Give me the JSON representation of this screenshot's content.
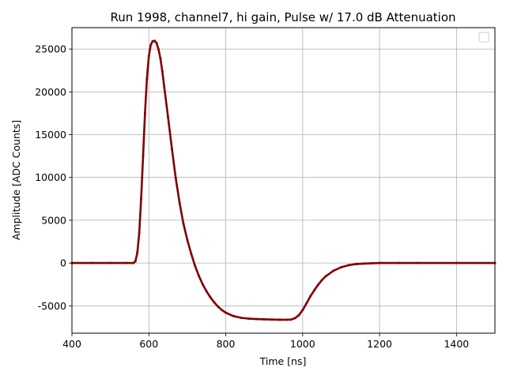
{
  "chart_data": {
    "type": "scatter",
    "title": "Run 1998, channel7, hi gain, Pulse w/ 17.0 dB Attenuation",
    "xlabel": "Time [ns]",
    "ylabel": "Amplitude [ADC Counts]",
    "xlim": [
      400,
      1500
    ],
    "ylim": [
      -8200,
      27500
    ],
    "xticks": [
      400,
      600,
      800,
      1000,
      1200,
      1400
    ],
    "yticks": [
      -5000,
      0,
      5000,
      10000,
      15000,
      20000,
      25000
    ],
    "grid": true,
    "legend": "top-right, empty",
    "series": [
      {
        "color": "#800000",
        "x": [
          400,
          450,
          500,
          540,
          560,
          565,
          570,
          575,
          580,
          585,
          590,
          595,
          600,
          605,
          610,
          615,
          620,
          625,
          630,
          635,
          640,
          650,
          660,
          670,
          680,
          690,
          700,
          710,
          720,
          730,
          740,
          750,
          760,
          770,
          780,
          790,
          800,
          820,
          840,
          860,
          880,
          900,
          920,
          940,
          960,
          970,
          980,
          990,
          1000,
          1010,
          1020,
          1030,
          1040,
          1050,
          1060,
          1080,
          1100,
          1120,
          1140,
          1160,
          1180,
          1200,
          1250,
          1300,
          1400,
          1500
        ],
        "y": [
          0,
          0,
          0,
          0,
          0,
          200,
          1200,
          3500,
          7500,
          12500,
          17500,
          21500,
          24200,
          25500,
          25900,
          25950,
          25700,
          25000,
          23900,
          22400,
          20600,
          17000,
          13300,
          9900,
          7000,
          4600,
          2700,
          1100,
          -300,
          -1500,
          -2500,
          -3300,
          -4000,
          -4600,
          -5100,
          -5500,
          -5800,
          -6200,
          -6400,
          -6500,
          -6550,
          -6580,
          -6600,
          -6620,
          -6620,
          -6600,
          -6450,
          -6100,
          -5500,
          -4700,
          -3900,
          -3200,
          -2550,
          -2000,
          -1550,
          -900,
          -500,
          -250,
          -120,
          -60,
          -25,
          0,
          0,
          0,
          0,
          0
        ]
      }
    ]
  }
}
